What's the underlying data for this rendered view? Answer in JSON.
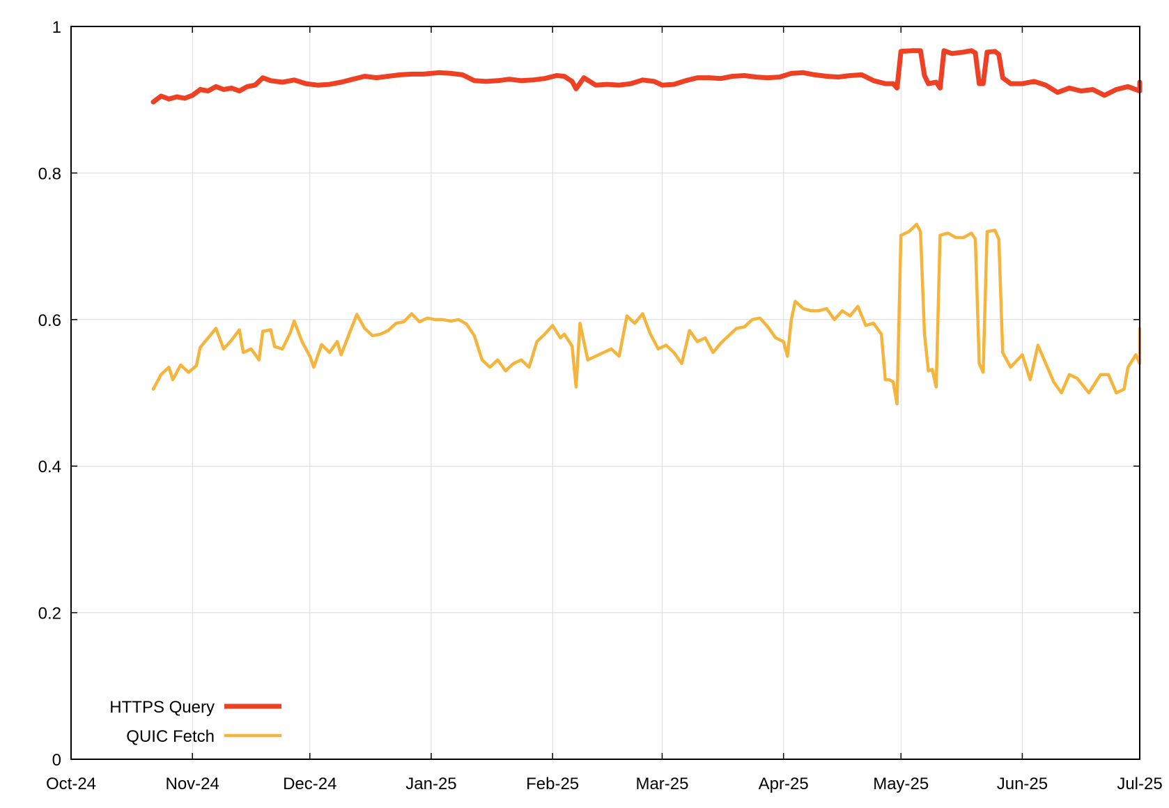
{
  "chart_data": {
    "type": "line",
    "title": "",
    "xlabel": "",
    "ylabel": "",
    "x_axis": {
      "ticks": [
        {
          "label": "Oct-24",
          "date": "2024-10-01"
        },
        {
          "label": "Nov-24",
          "date": "2024-11-01"
        },
        {
          "label": "Dec-24",
          "date": "2024-12-01"
        },
        {
          "label": "Jan-25",
          "date": "2025-01-01"
        },
        {
          "label": "Feb-25",
          "date": "2025-02-01"
        },
        {
          "label": "Mar-25",
          "date": "2025-03-01"
        },
        {
          "label": "Apr-25",
          "date": "2025-04-01"
        },
        {
          "label": "May-25",
          "date": "2025-05-01"
        },
        {
          "label": "Jun-25",
          "date": "2025-06-01"
        },
        {
          "label": "Jul-25",
          "date": "2025-07-01"
        }
      ],
      "range": [
        "2024-10-01",
        "2025-07-01"
      ]
    },
    "y_axis": {
      "ticks": [
        {
          "label": "0",
          "value": 0
        },
        {
          "label": "0.2",
          "value": 0.2
        },
        {
          "label": "0.4",
          "value": 0.4
        },
        {
          "label": "0.6",
          "value": 0.6
        },
        {
          "label": "0.8",
          "value": 0.8
        },
        {
          "label": "1",
          "value": 1
        }
      ],
      "range": [
        0,
        1
      ]
    },
    "grid": true,
    "legend_position": "bottom-left",
    "series": [
      {
        "name": "HTTPS Query",
        "color": "#ee4123",
        "points": [
          [
            "2024-10-22",
            0.897
          ],
          [
            "2024-10-24",
            0.905
          ],
          [
            "2024-10-26",
            0.901
          ],
          [
            "2024-10-28",
            0.904
          ],
          [
            "2024-10-30",
            0.902
          ],
          [
            "2024-11-01",
            0.906
          ],
          [
            "2024-11-03",
            0.914
          ],
          [
            "2024-11-05",
            0.912
          ],
          [
            "2024-11-07",
            0.918
          ],
          [
            "2024-11-09",
            0.914
          ],
          [
            "2024-11-11",
            0.916
          ],
          [
            "2024-11-13",
            0.912
          ],
          [
            "2024-11-15",
            0.918
          ],
          [
            "2024-11-17",
            0.92
          ],
          [
            "2024-11-19",
            0.93
          ],
          [
            "2024-11-21",
            0.926
          ],
          [
            "2024-11-24",
            0.924
          ],
          [
            "2024-11-27",
            0.927
          ],
          [
            "2024-11-30",
            0.922
          ],
          [
            "2024-12-03",
            0.92
          ],
          [
            "2024-12-06",
            0.921
          ],
          [
            "2024-12-09",
            0.924
          ],
          [
            "2024-12-12",
            0.928
          ],
          [
            "2024-12-15",
            0.932
          ],
          [
            "2024-12-18",
            0.93
          ],
          [
            "2024-12-21",
            0.932
          ],
          [
            "2024-12-24",
            0.934
          ],
          [
            "2024-12-27",
            0.935
          ],
          [
            "2024-12-30",
            0.935
          ],
          [
            "2025-01-03",
            0.937
          ],
          [
            "2025-01-06",
            0.936
          ],
          [
            "2025-01-09",
            0.934
          ],
          [
            "2025-01-12",
            0.926
          ],
          [
            "2025-01-15",
            0.925
          ],
          [
            "2025-01-18",
            0.926
          ],
          [
            "2025-01-21",
            0.928
          ],
          [
            "2025-01-24",
            0.926
          ],
          [
            "2025-01-27",
            0.927
          ],
          [
            "2025-01-30",
            0.929
          ],
          [
            "2025-02-02",
            0.933
          ],
          [
            "2025-02-04",
            0.932
          ],
          [
            "2025-02-06",
            0.925
          ],
          [
            "2025-02-07",
            0.915
          ],
          [
            "2025-02-09",
            0.93
          ],
          [
            "2025-02-12",
            0.92
          ],
          [
            "2025-02-15",
            0.921
          ],
          [
            "2025-02-18",
            0.92
          ],
          [
            "2025-02-21",
            0.922
          ],
          [
            "2025-02-24",
            0.927
          ],
          [
            "2025-02-27",
            0.925
          ],
          [
            "2025-03-01",
            0.92
          ],
          [
            "2025-03-04",
            0.921
          ],
          [
            "2025-03-07",
            0.926
          ],
          [
            "2025-03-10",
            0.93
          ],
          [
            "2025-03-13",
            0.93
          ],
          [
            "2025-03-16",
            0.929
          ],
          [
            "2025-03-19",
            0.932
          ],
          [
            "2025-03-22",
            0.933
          ],
          [
            "2025-03-25",
            0.931
          ],
          [
            "2025-03-28",
            0.93
          ],
          [
            "2025-03-31",
            0.931
          ],
          [
            "2025-04-03",
            0.936
          ],
          [
            "2025-04-06",
            0.937
          ],
          [
            "2025-04-09",
            0.934
          ],
          [
            "2025-04-12",
            0.932
          ],
          [
            "2025-04-15",
            0.931
          ],
          [
            "2025-04-18",
            0.933
          ],
          [
            "2025-04-21",
            0.934
          ],
          [
            "2025-04-24",
            0.926
          ],
          [
            "2025-04-27",
            0.922
          ],
          [
            "2025-04-29",
            0.922
          ],
          [
            "2025-04-30",
            0.916
          ],
          [
            "2025-05-01",
            0.966
          ],
          [
            "2025-05-04",
            0.967
          ],
          [
            "2025-05-06",
            0.967
          ],
          [
            "2025-05-07",
            0.933
          ],
          [
            "2025-05-08",
            0.922
          ],
          [
            "2025-05-10",
            0.924
          ],
          [
            "2025-05-11",
            0.916
          ],
          [
            "2025-05-12",
            0.967
          ],
          [
            "2025-05-14",
            0.963
          ],
          [
            "2025-05-17",
            0.965
          ],
          [
            "2025-05-19",
            0.967
          ],
          [
            "2025-05-20",
            0.964
          ],
          [
            "2025-05-21",
            0.922
          ],
          [
            "2025-05-22",
            0.922
          ],
          [
            "2025-05-23",
            0.965
          ],
          [
            "2025-05-25",
            0.966
          ],
          [
            "2025-05-26",
            0.962
          ],
          [
            "2025-05-27",
            0.93
          ],
          [
            "2025-05-29",
            0.922
          ],
          [
            "2025-06-01",
            0.922
          ],
          [
            "2025-06-04",
            0.925
          ],
          [
            "2025-06-07",
            0.92
          ],
          [
            "2025-06-10",
            0.91
          ],
          [
            "2025-06-13",
            0.916
          ],
          [
            "2025-06-16",
            0.912
          ],
          [
            "2025-06-19",
            0.914
          ],
          [
            "2025-06-22",
            0.906
          ],
          [
            "2025-06-25",
            0.914
          ],
          [
            "2025-06-28",
            0.918
          ],
          [
            "2025-07-01",
            0.912
          ],
          [
            "2025-07-01",
            0.924
          ]
        ]
      },
      {
        "name": "QUIC Fetch",
        "color": "#f5b43c",
        "points": [
          [
            "2024-10-22",
            0.505
          ],
          [
            "2024-10-24",
            0.525
          ],
          [
            "2024-10-26",
            0.535
          ],
          [
            "2024-10-27",
            0.518
          ],
          [
            "2024-10-29",
            0.538
          ],
          [
            "2024-10-31",
            0.528
          ],
          [
            "2024-11-02",
            0.537
          ],
          [
            "2024-11-03",
            0.562
          ],
          [
            "2024-11-05",
            0.575
          ],
          [
            "2024-11-07",
            0.588
          ],
          [
            "2024-11-09",
            0.56
          ],
          [
            "2024-11-11",
            0.572
          ],
          [
            "2024-11-13",
            0.586
          ],
          [
            "2024-11-14",
            0.555
          ],
          [
            "2024-11-16",
            0.56
          ],
          [
            "2024-11-18",
            0.545
          ],
          [
            "2024-11-19",
            0.584
          ],
          [
            "2024-11-21",
            0.586
          ],
          [
            "2024-11-22",
            0.563
          ],
          [
            "2024-11-24",
            0.56
          ],
          [
            "2024-11-26",
            0.582
          ],
          [
            "2024-11-27",
            0.598
          ],
          [
            "2024-11-29",
            0.57
          ],
          [
            "2024-12-01",
            0.55
          ],
          [
            "2024-12-02",
            0.535
          ],
          [
            "2024-12-04",
            0.566
          ],
          [
            "2024-12-06",
            0.555
          ],
          [
            "2024-12-08",
            0.57
          ],
          [
            "2024-12-09",
            0.552
          ],
          [
            "2024-12-11",
            0.58
          ],
          [
            "2024-12-13",
            0.607
          ],
          [
            "2024-12-15",
            0.588
          ],
          [
            "2024-12-17",
            0.578
          ],
          [
            "2024-12-19",
            0.58
          ],
          [
            "2024-12-21",
            0.585
          ],
          [
            "2024-12-23",
            0.595
          ],
          [
            "2024-12-25",
            0.597
          ],
          [
            "2024-12-27",
            0.608
          ],
          [
            "2024-12-29",
            0.597
          ],
          [
            "2024-12-31",
            0.602
          ],
          [
            "2025-01-02",
            0.6
          ],
          [
            "2025-01-04",
            0.6
          ],
          [
            "2025-01-06",
            0.598
          ],
          [
            "2025-01-08",
            0.6
          ],
          [
            "2025-01-10",
            0.594
          ],
          [
            "2025-01-12",
            0.578
          ],
          [
            "2025-01-14",
            0.545
          ],
          [
            "2025-01-16",
            0.535
          ],
          [
            "2025-01-18",
            0.545
          ],
          [
            "2025-01-20",
            0.53
          ],
          [
            "2025-01-22",
            0.54
          ],
          [
            "2025-01-24",
            0.545
          ],
          [
            "2025-01-26",
            0.535
          ],
          [
            "2025-01-28",
            0.57
          ],
          [
            "2025-01-30",
            0.58
          ],
          [
            "2025-02-01",
            0.592
          ],
          [
            "2025-02-03",
            0.575
          ],
          [
            "2025-02-04",
            0.58
          ],
          [
            "2025-02-06",
            0.564
          ],
          [
            "2025-02-07",
            0.508
          ],
          [
            "2025-02-08",
            0.595
          ],
          [
            "2025-02-10",
            0.545
          ],
          [
            "2025-02-12",
            0.55
          ],
          [
            "2025-02-14",
            0.555
          ],
          [
            "2025-02-16",
            0.56
          ],
          [
            "2025-02-18",
            0.55
          ],
          [
            "2025-02-20",
            0.605
          ],
          [
            "2025-02-22",
            0.595
          ],
          [
            "2025-02-24",
            0.608
          ],
          [
            "2025-02-26",
            0.58
          ],
          [
            "2025-02-28",
            0.56
          ],
          [
            "2025-03-02",
            0.565
          ],
          [
            "2025-03-04",
            0.555
          ],
          [
            "2025-03-06",
            0.54
          ],
          [
            "2025-03-08",
            0.585
          ],
          [
            "2025-03-10",
            0.57
          ],
          [
            "2025-03-12",
            0.575
          ],
          [
            "2025-03-14",
            0.555
          ],
          [
            "2025-03-16",
            0.568
          ],
          [
            "2025-03-18",
            0.578
          ],
          [
            "2025-03-20",
            0.588
          ],
          [
            "2025-03-22",
            0.59
          ],
          [
            "2025-03-24",
            0.6
          ],
          [
            "2025-03-26",
            0.602
          ],
          [
            "2025-03-28",
            0.59
          ],
          [
            "2025-03-30",
            0.575
          ],
          [
            "2025-04-01",
            0.57
          ],
          [
            "2025-04-02",
            0.55
          ],
          [
            "2025-04-03",
            0.6
          ],
          [
            "2025-04-04",
            0.625
          ],
          [
            "2025-04-06",
            0.615
          ],
          [
            "2025-04-08",
            0.612
          ],
          [
            "2025-04-10",
            0.612
          ],
          [
            "2025-04-12",
            0.615
          ],
          [
            "2025-04-14",
            0.6
          ],
          [
            "2025-04-16",
            0.612
          ],
          [
            "2025-04-18",
            0.605
          ],
          [
            "2025-04-20",
            0.618
          ],
          [
            "2025-04-22",
            0.592
          ],
          [
            "2025-04-24",
            0.595
          ],
          [
            "2025-04-26",
            0.58
          ],
          [
            "2025-04-27",
            0.518
          ],
          [
            "2025-04-28",
            0.518
          ],
          [
            "2025-04-29",
            0.515
          ],
          [
            "2025-04-30",
            0.485
          ],
          [
            "2025-05-01",
            0.715
          ],
          [
            "2025-05-03",
            0.72
          ],
          [
            "2025-05-05",
            0.73
          ],
          [
            "2025-05-06",
            0.72
          ],
          [
            "2025-05-07",
            0.58
          ],
          [
            "2025-05-08",
            0.53
          ],
          [
            "2025-05-09",
            0.532
          ],
          [
            "2025-05-10",
            0.508
          ],
          [
            "2025-05-11",
            0.715
          ],
          [
            "2025-05-13",
            0.718
          ],
          [
            "2025-05-15",
            0.712
          ],
          [
            "2025-05-17",
            0.712
          ],
          [
            "2025-05-19",
            0.718
          ],
          [
            "2025-05-20",
            0.71
          ],
          [
            "2025-05-21",
            0.54
          ],
          [
            "2025-05-22",
            0.528
          ],
          [
            "2025-05-23",
            0.72
          ],
          [
            "2025-05-25",
            0.722
          ],
          [
            "2025-05-26",
            0.71
          ],
          [
            "2025-05-27",
            0.555
          ],
          [
            "2025-05-29",
            0.535
          ],
          [
            "2025-06-01",
            0.552
          ],
          [
            "2025-06-03",
            0.518
          ],
          [
            "2025-06-05",
            0.565
          ],
          [
            "2025-06-07",
            0.54
          ],
          [
            "2025-06-09",
            0.515
          ],
          [
            "2025-06-11",
            0.5
          ],
          [
            "2025-06-13",
            0.525
          ],
          [
            "2025-06-15",
            0.52
          ],
          [
            "2025-06-18",
            0.5
          ],
          [
            "2025-06-21",
            0.525
          ],
          [
            "2025-06-23",
            0.525
          ],
          [
            "2025-06-25",
            0.5
          ],
          [
            "2025-06-27",
            0.505
          ],
          [
            "2025-06-28",
            0.535
          ],
          [
            "2025-06-30",
            0.552
          ],
          [
            "2025-07-01",
            0.54
          ],
          [
            "2025-07-01",
            0.588
          ]
        ]
      }
    ]
  }
}
